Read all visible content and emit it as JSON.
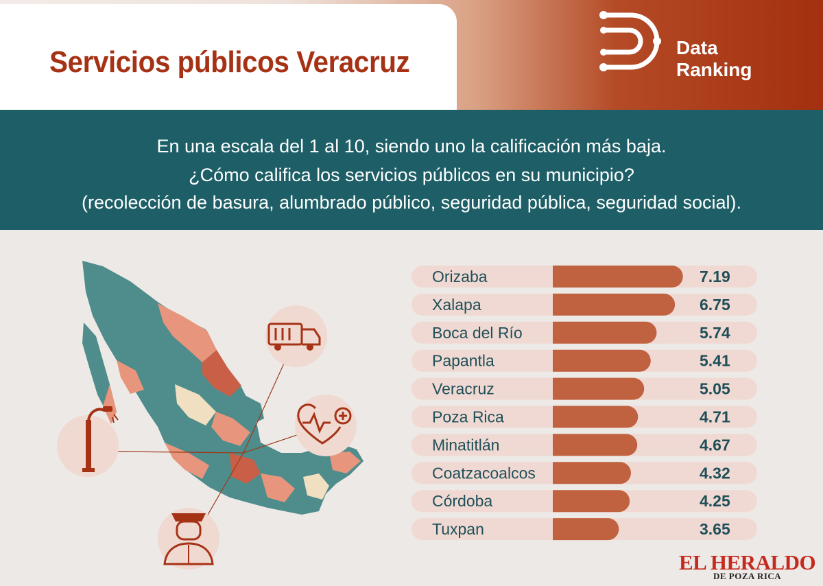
{
  "header": {
    "title": "Servicios públicos Veracruz",
    "brand_line1": "Data",
    "brand_line2": "Ranking",
    "logo_icon": "data-ranking-logo-icon"
  },
  "question": {
    "line1": "En una escala del 1 al 10, siendo uno la calificación más  baja.",
    "line2": "¿Cómo califica los servicios públicos en su municipio?",
    "line3": "(recolección de basura, alumbrado público, seguridad pública, seguridad social)."
  },
  "icons": [
    "garbage-truck-icon",
    "street-lamp-icon",
    "heart-health-icon",
    "police-officer-icon",
    "mexico-map"
  ],
  "colors": {
    "teal": "#1e5f67",
    "accent": "#a63216",
    "bar": "#c0613f",
    "row_bg": "#f0d9d3"
  },
  "chart_data": {
    "type": "bar",
    "orientation": "horizontal",
    "categories": [
      "Orizaba",
      "Xalapa",
      "Boca del Río",
      "Papantla",
      "Veracruz",
      "Poza Rica",
      "Minatitlán",
      "Coatzacoalcos",
      "Córdoba",
      "Tuxpan"
    ],
    "values": [
      7.19,
      6.75,
      5.74,
      5.41,
      5.05,
      4.71,
      4.67,
      4.32,
      4.25,
      3.65
    ],
    "value_labels": [
      "7.19",
      "6.75",
      "5.74",
      "5.41",
      "5.05",
      "4.71",
      "4.67",
      "4.32",
      "4.25",
      "3.65"
    ],
    "xlim": [
      0,
      10
    ]
  },
  "footer": {
    "publisher": "EL HERALDO",
    "publisher_sub": "DE POZA RICA"
  }
}
